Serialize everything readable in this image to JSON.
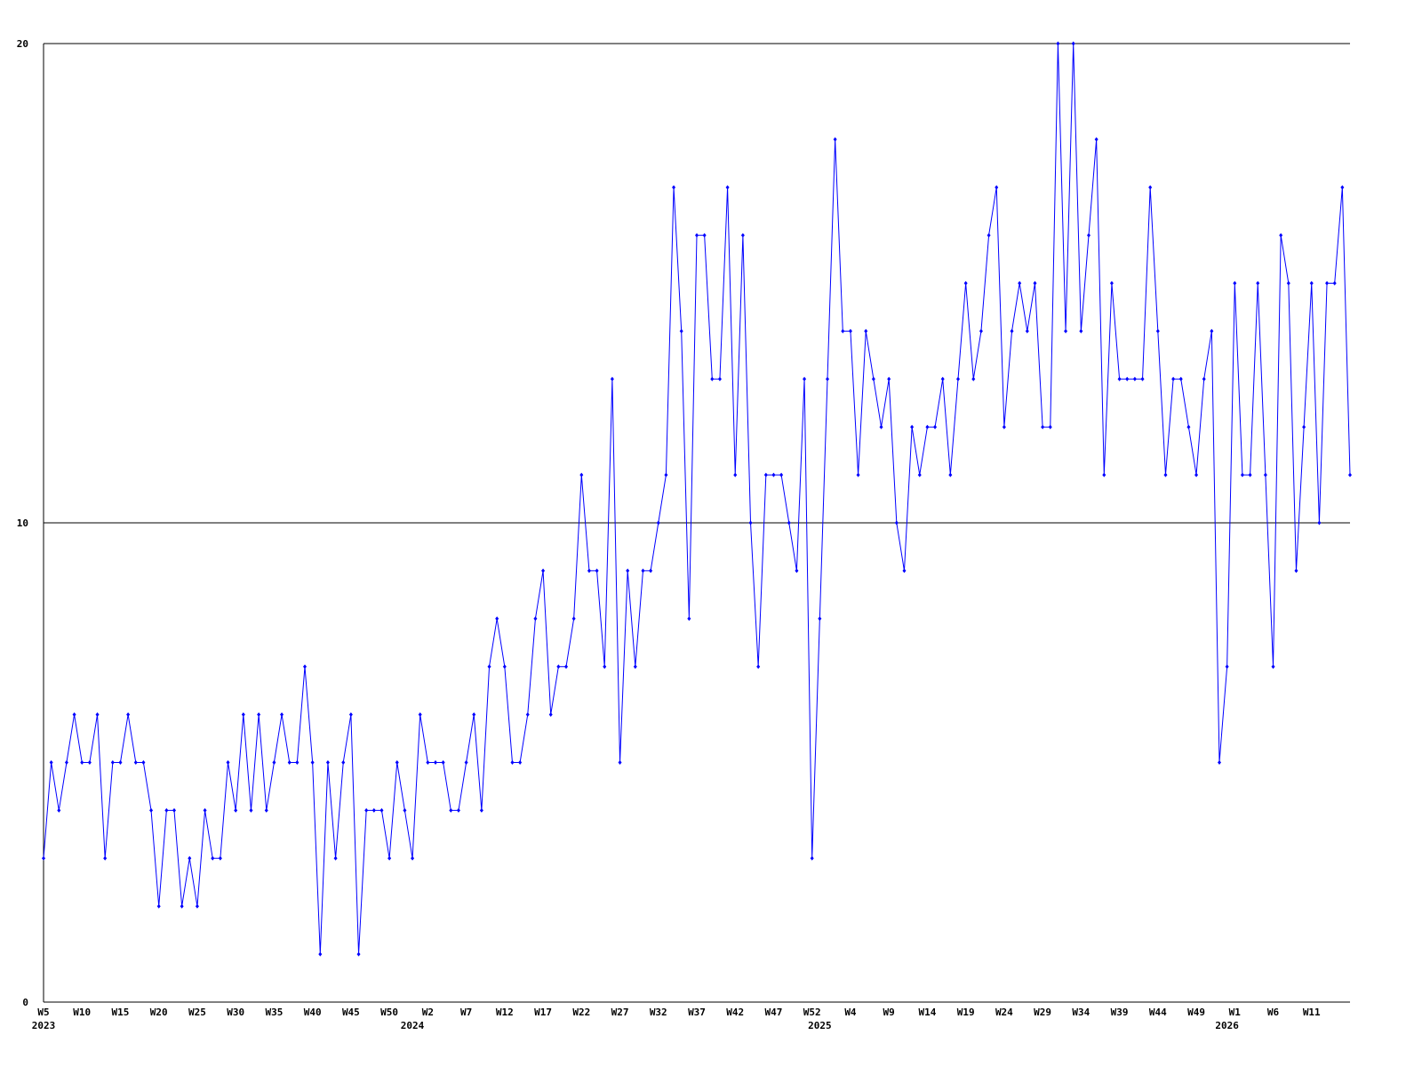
{
  "chart_data": {
    "type": "line",
    "categories": [
      "W5",
      null,
      null,
      null,
      null,
      "W10",
      null,
      null,
      null,
      null,
      "W15",
      null,
      null,
      null,
      null,
      "W20",
      null,
      null,
      null,
      null,
      "W25",
      null,
      null,
      null,
      null,
      "W30",
      null,
      null,
      null,
      null,
      "W35",
      null,
      null,
      null,
      null,
      "W40",
      null,
      null,
      null,
      null,
      "W45",
      null,
      null,
      null,
      null,
      "W50",
      null,
      null,
      null,
      null,
      "W2",
      null,
      null,
      null,
      null,
      "W7",
      null,
      null,
      null,
      null,
      "W12",
      null,
      null,
      null,
      null,
      "W17",
      null,
      null,
      null,
      null,
      "W22",
      null,
      null,
      null,
      null,
      "W27",
      null,
      null,
      null,
      null,
      "W32",
      null,
      null,
      null,
      null,
      "W37",
      null,
      null,
      null,
      null,
      "W42",
      null,
      null,
      null,
      null,
      "W47",
      null,
      null,
      null,
      null,
      "W52",
      null,
      null,
      null,
      null,
      "W4",
      null,
      null,
      null,
      null,
      "W9",
      null,
      null,
      null,
      null,
      "W14",
      null,
      null,
      null,
      null,
      "W19",
      null,
      null,
      null,
      null,
      "W24",
      null,
      null,
      null,
      null,
      "W29",
      null,
      null,
      null,
      null,
      "W34",
      null,
      null,
      null,
      null,
      "W39",
      null,
      null,
      null,
      null,
      "W44",
      null,
      null,
      null,
      null,
      "W49",
      null,
      null,
      null,
      null,
      "W1",
      null,
      null,
      null,
      null,
      "W6",
      null,
      null,
      null,
      null,
      "W11",
      null,
      null,
      null,
      null,
      null
    ],
    "year_labels": [
      "2023",
      null,
      null,
      null,
      null,
      null,
      null,
      null,
      null,
      null,
      null,
      null,
      null,
      null,
      null,
      null,
      null,
      null,
      null,
      null,
      null,
      null,
      null,
      null,
      null,
      null,
      null,
      null,
      null,
      null,
      null,
      null,
      null,
      null,
      null,
      null,
      null,
      null,
      null,
      null,
      null,
      null,
      null,
      null,
      null,
      null,
      null,
      null,
      "2024",
      null,
      null,
      null,
      null,
      null,
      null,
      null,
      null,
      null,
      null,
      null,
      null,
      null,
      null,
      null,
      null,
      null,
      null,
      null,
      null,
      null,
      null,
      null,
      null,
      null,
      null,
      null,
      null,
      null,
      null,
      null,
      null,
      null,
      null,
      null,
      null,
      null,
      null,
      null,
      null,
      null,
      null,
      null,
      null,
      null,
      null,
      null,
      null,
      null,
      null,
      null,
      null,
      "2025",
      null,
      null,
      null,
      null,
      null,
      null,
      null,
      null,
      null,
      null,
      null,
      null,
      null,
      null,
      null,
      null,
      null,
      null,
      null,
      null,
      null,
      null,
      null,
      null,
      null,
      null,
      null,
      null,
      null,
      null,
      null,
      null,
      null,
      null,
      null,
      null,
      null,
      null,
      null,
      null,
      null,
      null,
      null,
      null,
      null,
      null,
      null,
      null,
      null,
      null,
      null,
      null,
      "2026",
      null,
      null,
      null,
      null,
      null,
      null,
      null,
      null,
      null,
      null,
      null,
      null,
      null,
      null,
      null,
      null
    ],
    "series": [
      {
        "color": "#0000ff",
        "values": [
          3,
          5,
          4,
          5,
          6,
          5,
          5,
          6,
          3,
          5,
          5,
          6,
          5,
          5,
          4,
          2,
          4,
          4,
          2,
          3,
          2,
          4,
          3,
          3,
          5,
          4,
          6,
          4,
          6,
          4,
          5,
          6,
          5,
          5,
          7,
          5,
          1,
          5,
          3,
          5,
          6,
          1,
          4,
          4,
          4,
          3,
          5,
          4,
          3,
          6,
          5,
          5,
          5,
          4,
          4,
          5,
          6,
          4,
          7,
          8,
          7,
          5,
          5,
          6,
          8,
          9,
          6,
          7,
          7,
          8,
          11,
          9,
          9,
          7,
          13,
          5,
          9,
          7,
          9,
          9,
          10,
          11,
          17,
          14,
          8,
          16,
          16,
          13,
          13,
          17,
          11,
          16,
          10,
          7,
          11,
          11,
          11,
          10,
          9,
          13,
          3,
          8,
          13,
          18,
          14,
          14,
          11,
          14,
          13,
          12,
          13,
          10,
          9,
          12,
          11,
          12,
          12,
          13,
          11,
          13,
          15,
          13,
          14,
          16,
          17,
          12,
          14,
          15,
          14,
          15,
          12,
          12,
          20,
          14,
          20,
          14,
          16,
          18,
          11,
          15,
          13,
          13,
          13,
          13,
          17,
          14,
          11,
          13,
          13,
          12,
          11,
          13,
          14,
          5,
          7,
          15,
          11,
          11,
          15,
          11,
          7,
          16,
          15,
          9,
          12,
          15,
          10,
          15,
          15,
          17,
          11
        ]
      }
    ],
    "ylim": [
      0,
      20
    ],
    "yticks": [
      0,
      10,
      20
    ],
    "grid": true
  }
}
